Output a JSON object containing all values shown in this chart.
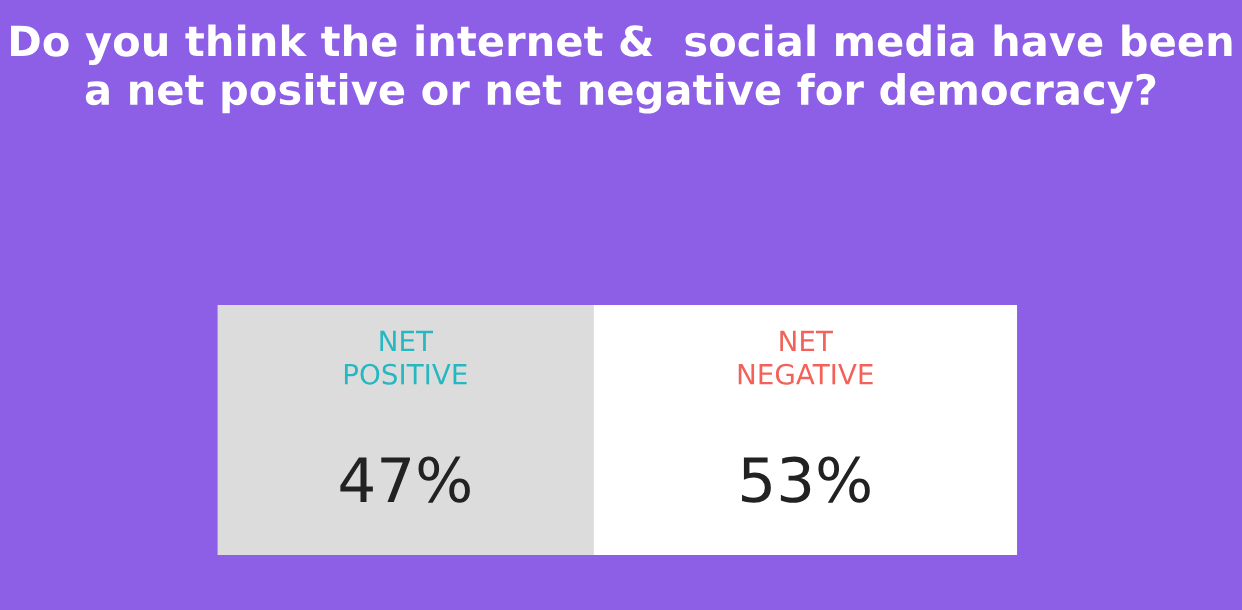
{
  "chart_data": {
    "type": "bar",
    "orientation": "horizontal",
    "stacked": true,
    "title": "Do you think the internet &  social media have been a net positive or net negative for democracy?",
    "categories": [
      null
    ],
    "xlim": [
      0,
      100
    ],
    "series": [
      {
        "name": "NET\nPOSITIVE",
        "color": "#dcdcdc",
        "values": [
          47
        ],
        "value_labels": [
          "47%"
        ]
      },
      {
        "name": "NET\nNEGATIVE",
        "color": "#ffffff",
        "values": [
          53
        ],
        "value_labels": [
          "53%"
        ]
      }
    ]
  }
}
